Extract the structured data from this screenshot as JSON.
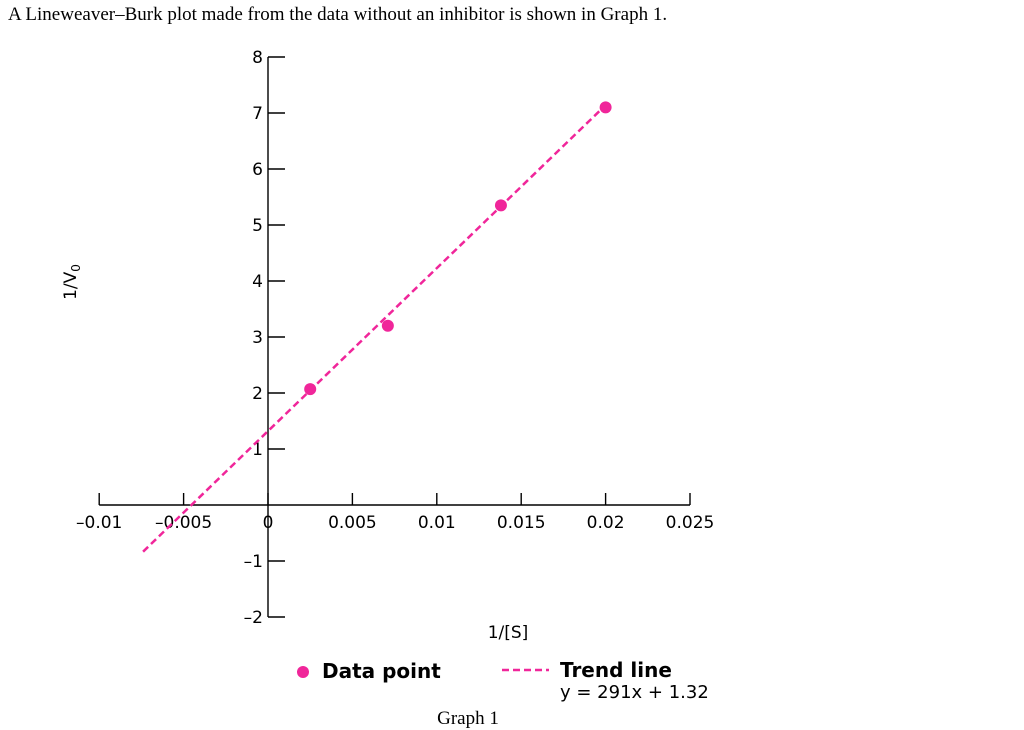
{
  "intro_text": "A Lineweaver–Burk plot made from the data without an inhibitor is shown in Graph 1.",
  "caption": "Graph 1",
  "colors": {
    "accent": "#f0269a",
    "axis": "#000000"
  },
  "chart_data": {
    "type": "scatter",
    "xlabel": "1/[S]",
    "ylabel": "1/V",
    "ylabel_subscript": "0",
    "xlim": [
      -0.01,
      0.025
    ],
    "ylim": [
      -2,
      8
    ],
    "x_ticks": [
      -0.01,
      -0.005,
      0,
      0.005,
      0.01,
      0.015,
      0.02,
      0.025
    ],
    "x_tick_labels": [
      "–0.01",
      "–0.005",
      "0",
      "0.005",
      "0.01",
      "0.015",
      "0.02",
      "0.025"
    ],
    "y_ticks": [
      -2,
      -1,
      1,
      2,
      3,
      4,
      5,
      6,
      7,
      8
    ],
    "y_tick_labels": [
      "–2",
      "–1",
      "1",
      "2",
      "3",
      "4",
      "5",
      "6",
      "7",
      "8"
    ],
    "series": [
      {
        "name": "Data point",
        "x": [
          0.0025,
          0.0071,
          0.0138,
          0.02
        ],
        "y": [
          2.07,
          3.2,
          5.35,
          7.1
        ]
      }
    ],
    "trend": {
      "name": "Trend line",
      "equation": "y = 291x + 1.32",
      "slope": 291,
      "intercept": 1.32,
      "x_range": [
        -0.0074,
        0.0201
      ]
    },
    "legend_placement": "bottom"
  }
}
